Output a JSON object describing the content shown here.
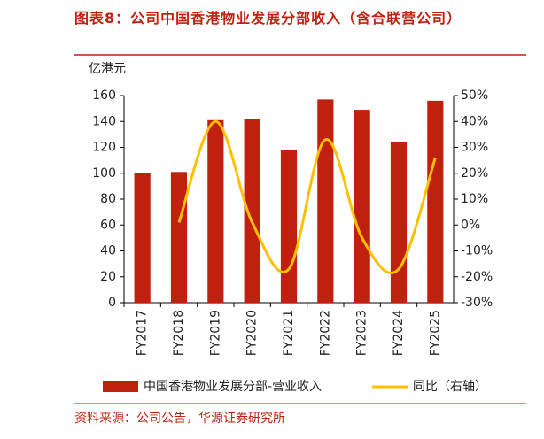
{
  "chart_data": {
    "type": "bar_line",
    "title": "图表8：公司中国香港物业发展分部收入（含合联营公司）",
    "y_axis_label": "亿港元",
    "source": "资料来源：公司公告，华源证券研究所",
    "categories": [
      "FY2017",
      "FY2018",
      "FY2019",
      "FY2020",
      "FY2021",
      "FY2022",
      "FY2023",
      "FY2024",
      "FY2025"
    ],
    "series": [
      {
        "name": "中国香港物业发展分部-营业收入",
        "color": "#c0210f",
        "type": "bar",
        "values": [
          100,
          101,
          141,
          142,
          118,
          157,
          149,
          124,
          156
        ]
      },
      {
        "name": "同比（右轴）",
        "color": "#ffc000",
        "type": "line",
        "axis": "y2",
        "values": [
          null,
          1,
          40,
          1,
          -17,
          33,
          -5,
          -17,
          26
        ]
      }
    ],
    "ylim": [
      0,
      160
    ],
    "yticks": [
      0,
      20,
      40,
      60,
      80,
      100,
      120,
      140,
      160
    ],
    "y2lim": [
      -30,
      50
    ],
    "y2ticks": [
      {
        "value": -30,
        "label": "-30%"
      },
      {
        "value": -20,
        "label": "-20%"
      },
      {
        "value": -10,
        "label": "-10%"
      },
      {
        "value": 0,
        "label": "0%"
      },
      {
        "value": 10,
        "label": "10%"
      },
      {
        "value": 20,
        "label": "20%"
      },
      {
        "value": 30,
        "label": "30%"
      },
      {
        "value": 40,
        "label": "40%"
      },
      {
        "value": 50,
        "label": "50%"
      }
    ]
  }
}
